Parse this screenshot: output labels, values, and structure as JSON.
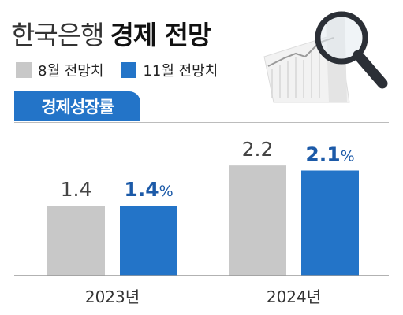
{
  "header": {
    "title_light": "한국은행",
    "title_bold": "경제 전망"
  },
  "legend": [
    {
      "label": "8월 전망치",
      "color": "#c8c8c8"
    },
    {
      "label": "11월 전망치",
      "color": "#2374c8"
    }
  ],
  "section_label": "경제성장률",
  "colors": {
    "accent": "#2374c8",
    "grey": "#c8c8c8",
    "blue_text": "#1c5aa8"
  },
  "chart_data": {
    "type": "bar",
    "categories": [
      "2023년",
      "2024년"
    ],
    "unit": "%",
    "series": [
      {
        "name": "8월 전망치",
        "values": [
          1.4,
          2.2
        ],
        "labels": [
          "1.4",
          "2.2"
        ]
      },
      {
        "name": "11월 전망치",
        "values": [
          1.4,
          2.1
        ],
        "labels": [
          "1.4",
          "2.1"
        ]
      }
    ],
    "ylim": [
      0,
      2.8
    ],
    "grid": false
  }
}
